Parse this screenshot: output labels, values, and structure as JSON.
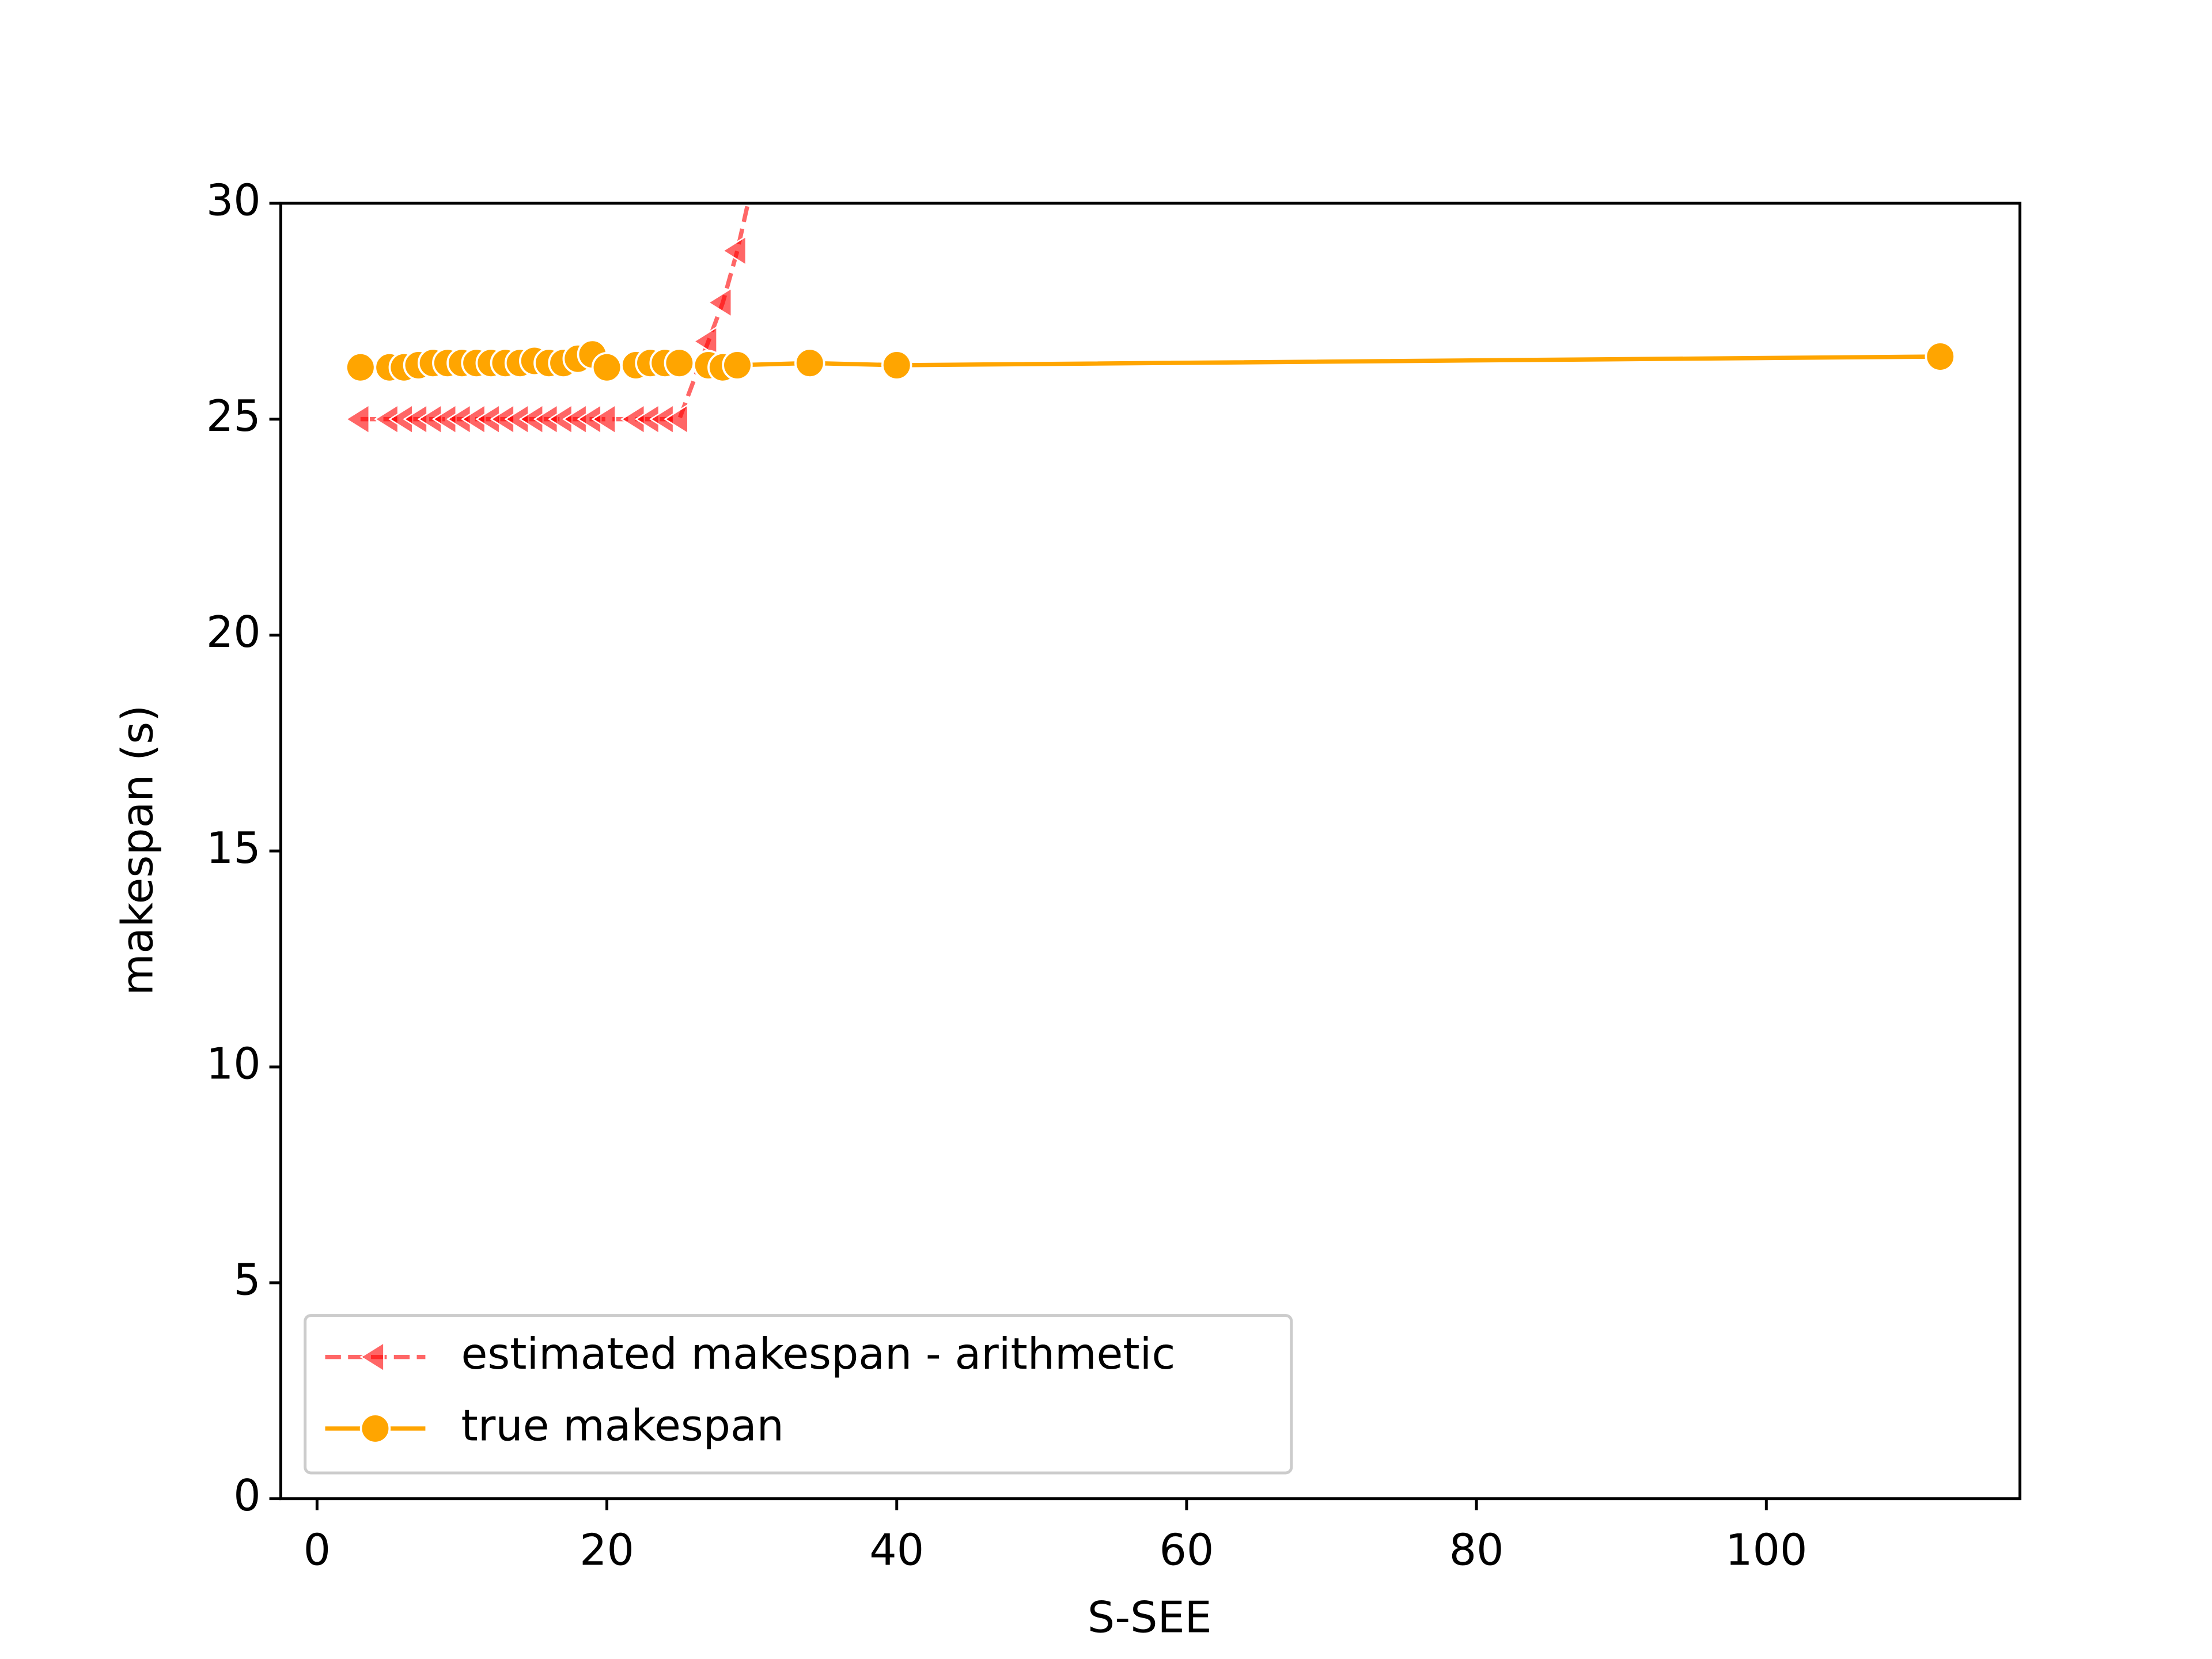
{
  "chart_data": {
    "type": "line",
    "x_label": "S-SEE",
    "y_label": "makespan (s)",
    "xlim": [
      -2.5,
      117.5
    ],
    "ylim": [
      0,
      30
    ],
    "xticks": [
      0,
      20,
      40,
      60,
      80,
      100
    ],
    "yticks": [
      0,
      5,
      10,
      15,
      20,
      25,
      30
    ],
    "legend": "lower left",
    "series": [
      {
        "name": "estimated makespan - arithmetic",
        "color": "#ff0000",
        "marker": "triangle-left",
        "dashed": true,
        "x": [
          3,
          5,
          6,
          7,
          8,
          9,
          10,
          11,
          12,
          13,
          14,
          15,
          16,
          17,
          18,
          19,
          20,
          22,
          23,
          24,
          25,
          27,
          28,
          29,
          30
        ],
        "values": [
          25,
          25,
          25,
          25,
          25,
          25,
          25,
          25,
          25,
          25,
          25,
          25,
          25,
          25,
          25,
          25,
          25,
          25,
          25,
          25,
          25,
          26.8,
          27.7,
          28.9,
          30.4
        ]
      },
      {
        "name": "true makespan",
        "color": "#ffa500",
        "marker": "circle",
        "dashed": false,
        "x": [
          3,
          5,
          6,
          7,
          8,
          9,
          10,
          11,
          12,
          13,
          14,
          15,
          16,
          17,
          18,
          19,
          20,
          22,
          23,
          24,
          25,
          27,
          28,
          29,
          34,
          40,
          112
        ],
        "values": [
          26.2,
          26.2,
          26.2,
          26.25,
          26.3,
          26.3,
          26.3,
          26.3,
          26.3,
          26.3,
          26.3,
          26.35,
          26.3,
          26.3,
          26.4,
          26.5,
          26.2,
          26.25,
          26.3,
          26.3,
          26.3,
          26.25,
          26.2,
          26.25,
          26.3,
          26.25,
          26.45
        ]
      }
    ]
  }
}
